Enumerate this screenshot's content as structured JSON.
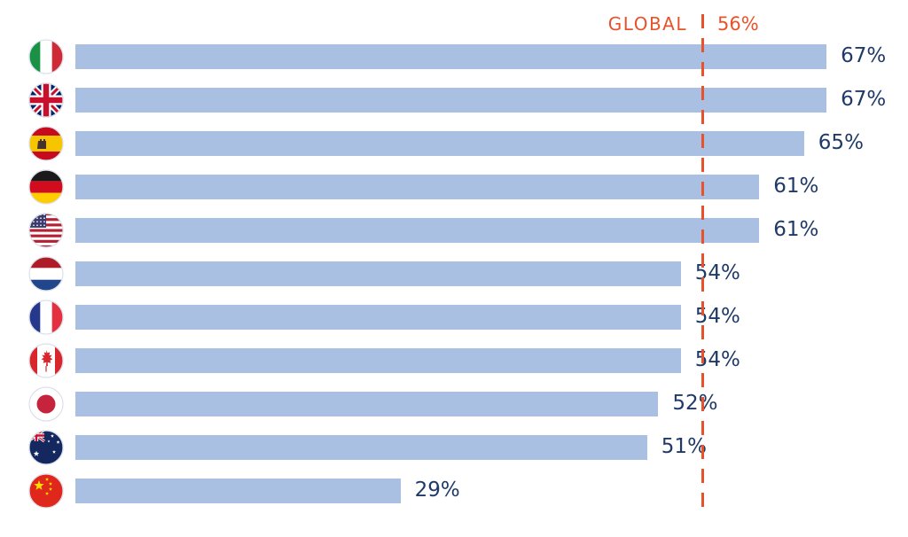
{
  "header": {
    "global_label": "GLOBAL",
    "global_value_label": "56%"
  },
  "colors": {
    "bar": "#aac0e2",
    "value_text": "#1f3a68",
    "global_accent": "#e8522b"
  },
  "chart_data": {
    "type": "bar",
    "orientation": "horizontal",
    "title": "",
    "unit": "%",
    "categories": [
      "Italy",
      "United Kingdom",
      "Spain",
      "Germany",
      "United States",
      "Netherlands",
      "France",
      "Canada",
      "Japan",
      "Australia",
      "China"
    ],
    "values": [
      67,
      67,
      65,
      61,
      61,
      54,
      54,
      54,
      52,
      51,
      29
    ],
    "labels": [
      "67%",
      "67%",
      "65%",
      "61%",
      "61%",
      "54%",
      "54%",
      "54%",
      "52%",
      "51%",
      "29%"
    ],
    "flags": [
      "italy-flag-icon",
      "uk-flag-icon",
      "spain-flag-icon",
      "germany-flag-icon",
      "usa-flag-icon",
      "netherlands-flag-icon",
      "france-flag-icon",
      "canada-flag-icon",
      "japan-flag-icon",
      "australia-flag-icon",
      "china-flag-icon"
    ],
    "reference_line": {
      "label": "GLOBAL",
      "value": 56,
      "value_label": "56%",
      "style": "dashed",
      "color": "#e8522b"
    },
    "xlim": [
      0,
      74
    ],
    "grid": false,
    "legend": false
  }
}
